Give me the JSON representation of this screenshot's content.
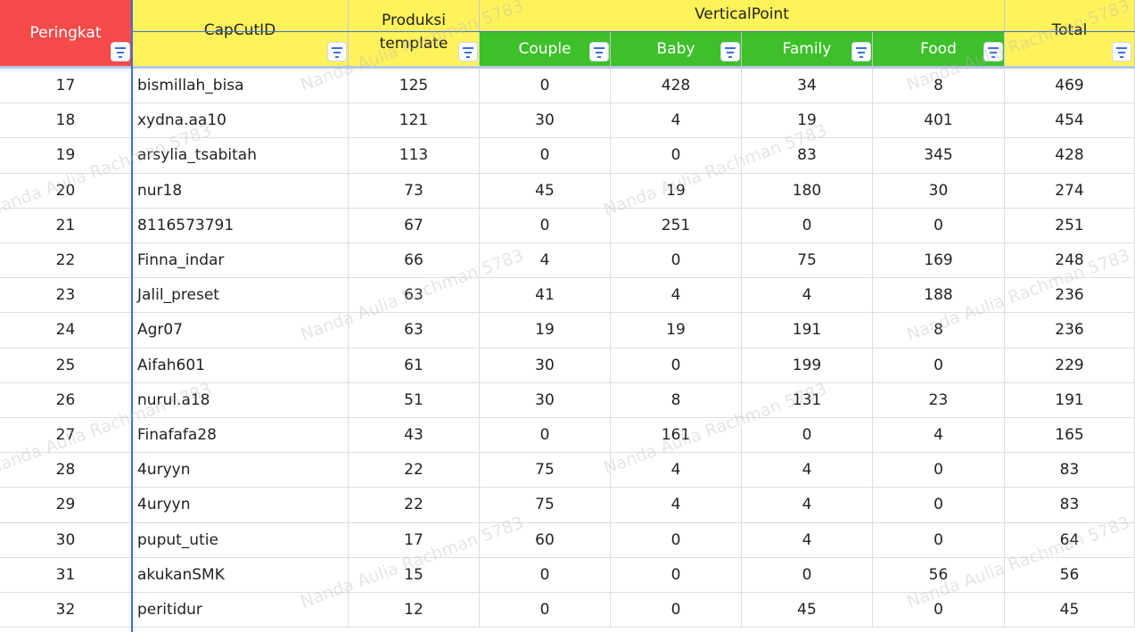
{
  "header": {
    "rank": "Peringkat",
    "id": "CapCutID",
    "production": "Produksi template",
    "group": "VerticalPoint",
    "sub": [
      "Couple",
      "Baby",
      "Family",
      "Food"
    ],
    "total": "Total"
  },
  "watermark": "Nanda Aulia Rachman 5783",
  "table": {
    "rows": [
      [
        17,
        "bismillah_bisa",
        125,
        0,
        428,
        34,
        8,
        469
      ],
      [
        18,
        "xydna.aa10",
        121,
        30,
        4,
        19,
        401,
        454
      ],
      [
        19,
        "arsylia_tsabitah",
        113,
        0,
        0,
        83,
        345,
        428
      ],
      [
        20,
        "nur18",
        73,
        45,
        19,
        180,
        30,
        274
      ],
      [
        21,
        "8116573791",
        67,
        0,
        251,
        0,
        0,
        251
      ],
      [
        22,
        "Finna_indar",
        66,
        4,
        0,
        75,
        169,
        248
      ],
      [
        23,
        "Jalil_preset",
        63,
        41,
        4,
        4,
        188,
        236
      ],
      [
        24,
        "Agr07",
        63,
        19,
        19,
        191,
        8,
        236
      ],
      [
        25,
        "Aifah601",
        61,
        30,
        0,
        199,
        0,
        229
      ],
      [
        26,
        "nurul.a18",
        51,
        30,
        8,
        131,
        23,
        191
      ],
      [
        27,
        "Finafafa28",
        43,
        0,
        161,
        0,
        4,
        165
      ],
      [
        28,
        "4uryyn",
        22,
        75,
        4,
        4,
        0,
        83
      ],
      [
        29,
        "4uryyn",
        22,
        75,
        4,
        4,
        0,
        83
      ],
      [
        30,
        "puput_utie",
        17,
        60,
        0,
        4,
        0,
        64
      ],
      [
        31,
        "akukanSMK",
        15,
        0,
        0,
        0,
        56,
        56
      ],
      [
        32,
        "peritidur",
        12,
        0,
        0,
        45,
        0,
        45
      ]
    ]
  }
}
